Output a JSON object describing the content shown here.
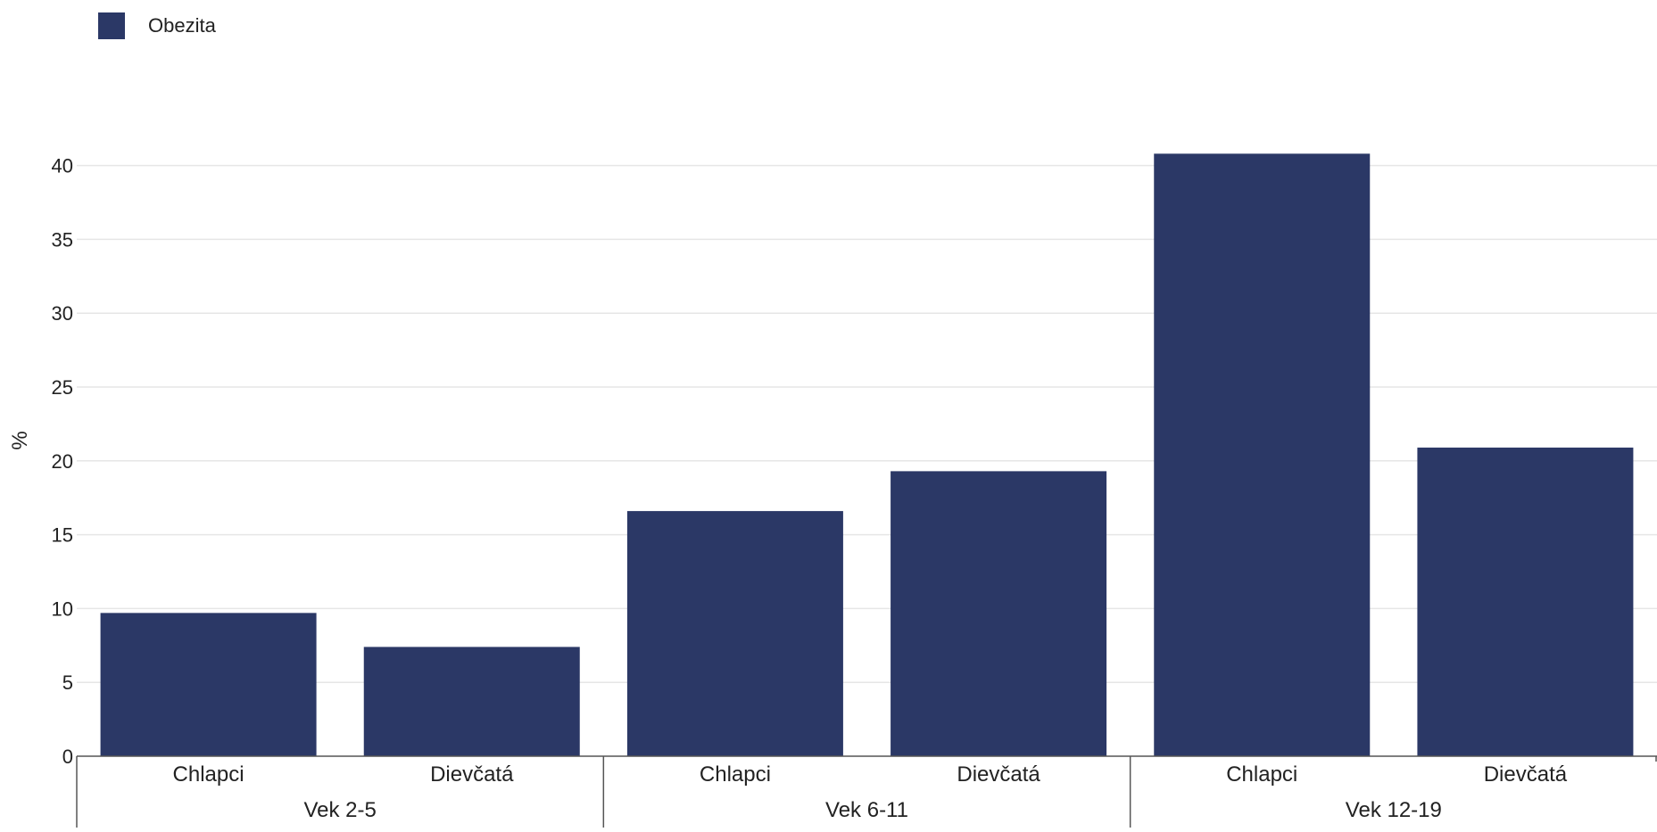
{
  "legend": {
    "label": "Obezita",
    "color": "#2b3866"
  },
  "chart_data": {
    "type": "bar",
    "ylabel": "%",
    "ylim": [
      0,
      42
    ],
    "yticks": [
      0,
      5,
      10,
      15,
      20,
      25,
      30,
      35,
      40
    ],
    "grid": true,
    "legend_position": "top-left",
    "groups": [
      {
        "label": "Vek 2-5",
        "categories": [
          "Chlapci",
          "Dievčatá"
        ]
      },
      {
        "label": "Vek 6-11",
        "categories": [
          "Chlapci",
          "Dievčatá"
        ]
      },
      {
        "label": "Vek 12-19",
        "categories": [
          "Chlapci",
          "Dievčatá"
        ]
      }
    ],
    "series": [
      {
        "name": "Obezita",
        "color": "#2b3866",
        "values": [
          9.7,
          7.4,
          16.6,
          19.3,
          40.8,
          20.9
        ]
      }
    ]
  }
}
